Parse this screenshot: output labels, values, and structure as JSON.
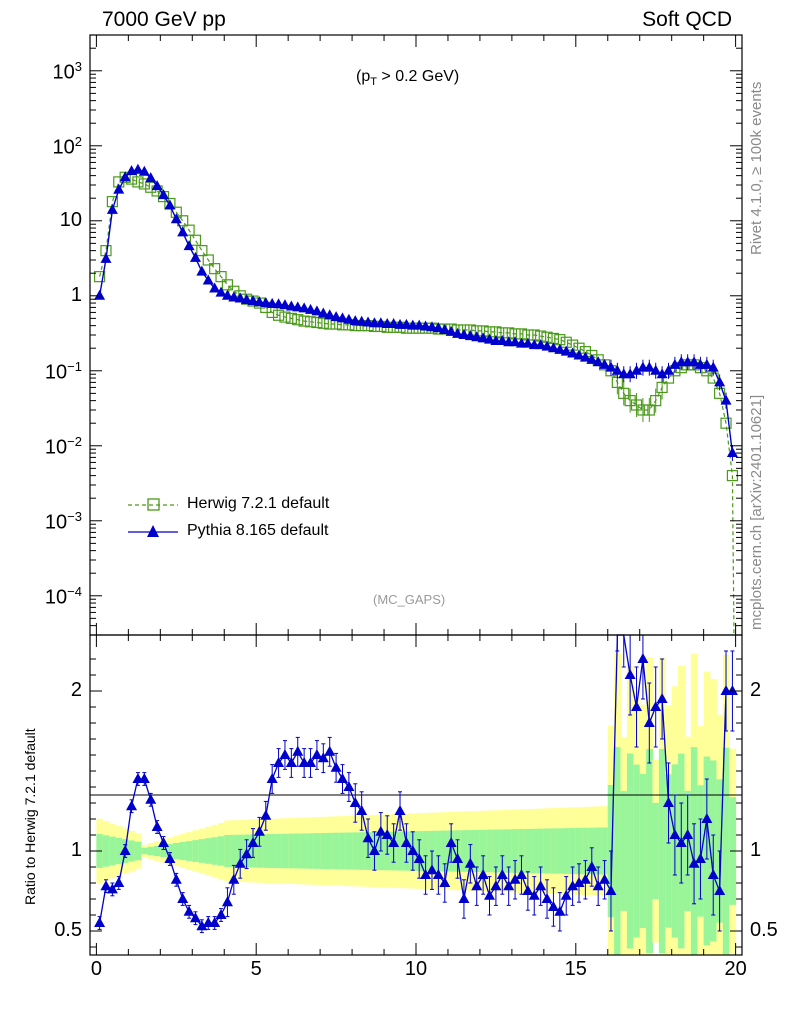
{
  "header": {
    "left": "7000 GeV pp",
    "right": "Soft QCD",
    "cut_main": "(p",
    "cut_sub": "T",
    "cut_rest": " > 0.2 GeV)",
    "watermark": "(MC_GAPS)"
  },
  "side": {
    "rivet": "Rivet 4.1.0, ≥ 100k events",
    "mcplots": "mcplots.cern.ch [arXiv:2401.10621]"
  },
  "ratio": {
    "ylabel": "Ratio to Herwig 7.2.1 default",
    "ylim": [
      0.35,
      2.35
    ],
    "yticks": [
      0.5,
      1,
      2
    ],
    "ytick_labels": [
      "0.5",
      "1",
      "2"
    ]
  },
  "colors": {
    "herwig": "#4a9a1a",
    "pythia": "#0000cc",
    "band_inner": "#99f599",
    "band_outer": "#ffff99"
  },
  "chart_data": {
    "type": "line",
    "title": "7000 GeV pp — Soft QCD (pT > 0.2 GeV)",
    "xlabel": "",
    "xlim": [
      -0.2,
      20.2
    ],
    "xticks": [
      0,
      5,
      10,
      15,
      20
    ],
    "xtick_labels": [
      "0",
      "5",
      "10",
      "15",
      "20"
    ],
    "ylim": [
      3e-05,
      3000
    ],
    "yscale": "log",
    "yticks": [
      0.0001,
      0.001,
      0.01,
      0.1,
      1,
      10,
      100,
      1000
    ],
    "ytick_labels": [
      {
        "base": "10",
        "exp": "−4"
      },
      {
        "base": "10",
        "exp": "−3"
      },
      {
        "base": "10",
        "exp": "−2"
      },
      {
        "base": "10",
        "exp": "−1"
      },
      {
        "base": "1",
        "exp": ""
      },
      {
        "base": "10",
        "exp": ""
      },
      {
        "base": "10",
        "exp": "2"
      },
      {
        "base": "10",
        "exp": "3"
      }
    ],
    "legend_position": "bottom-left",
    "x": [
      0.1,
      0.3,
      0.5,
      0.7,
      0.9,
      1.1,
      1.3,
      1.5,
      1.7,
      1.9,
      2.1,
      2.3,
      2.5,
      2.7,
      2.9,
      3.1,
      3.3,
      3.5,
      3.7,
      3.9,
      4.1,
      4.3,
      4.5,
      4.7,
      4.9,
      5.1,
      5.3,
      5.5,
      5.7,
      5.9,
      6.1,
      6.3,
      6.5,
      6.7,
      6.9,
      7.1,
      7.3,
      7.5,
      7.7,
      7.9,
      8.1,
      8.3,
      8.5,
      8.7,
      8.9,
      9.1,
      9.3,
      9.5,
      9.7,
      9.9,
      10.1,
      10.3,
      10.5,
      10.7,
      10.9,
      11.1,
      11.3,
      11.5,
      11.7,
      11.9,
      12.1,
      12.3,
      12.5,
      12.7,
      12.9,
      13.1,
      13.3,
      13.5,
      13.7,
      13.9,
      14.1,
      14.3,
      14.5,
      14.7,
      14.9,
      15.1,
      15.3,
      15.5,
      15.7,
      15.9,
      16.1,
      16.3,
      16.5,
      16.7,
      16.9,
      17.1,
      17.3,
      17.5,
      17.7,
      17.9,
      18.1,
      18.3,
      18.5,
      18.7,
      18.9,
      19.1,
      19.3,
      19.5,
      19.7,
      19.9
    ],
    "series": [
      {
        "name": "Herwig 7.2.1 default",
        "marker": "open-square",
        "linestyle": "dashed",
        "values": [
          1.8,
          4.0,
          18.0,
          33.0,
          38.0,
          36.0,
          33.0,
          31.0,
          28.0,
          25.0,
          21.0,
          17.0,
          13.0,
          10.0,
          7.5,
          5.5,
          4.0,
          3.0,
          2.3,
          1.8,
          1.4,
          1.15,
          1.0,
          0.9,
          0.85,
          0.8,
          0.7,
          0.6,
          0.55,
          0.52,
          0.5,
          0.48,
          0.46,
          0.45,
          0.44,
          0.43,
          0.42,
          0.42,
          0.41,
          0.41,
          0.4,
          0.4,
          0.4,
          0.39,
          0.39,
          0.38,
          0.38,
          0.38,
          0.37,
          0.37,
          0.37,
          0.37,
          0.37,
          0.36,
          0.36,
          0.36,
          0.35,
          0.35,
          0.35,
          0.34,
          0.34,
          0.33,
          0.33,
          0.32,
          0.32,
          0.31,
          0.31,
          0.3,
          0.3,
          0.29,
          0.28,
          0.27,
          0.26,
          0.24,
          0.22,
          0.2,
          0.18,
          0.16,
          0.14,
          0.12,
          0.1,
          0.07,
          0.05,
          0.04,
          0.035,
          0.03,
          0.03,
          0.04,
          0.06,
          0.08,
          0.1,
          0.11,
          0.12,
          0.12,
          0.11,
          0.1,
          0.08,
          0.05,
          0.02,
          0.004
        ]
      },
      {
        "name": "Pythia 8.165 default",
        "marker": "filled-triangle",
        "linestyle": "solid",
        "values": [
          1.0,
          3.1,
          14.0,
          26.0,
          38.0,
          46.0,
          48.0,
          45.0,
          37.0,
          29.0,
          22.0,
          16.0,
          10.5,
          7.0,
          4.6,
          3.2,
          2.1,
          1.6,
          1.25,
          1.1,
          1.0,
          0.95,
          0.92,
          0.88,
          0.85,
          0.82,
          0.8,
          0.78,
          0.77,
          0.75,
          0.72,
          0.7,
          0.68,
          0.65,
          0.62,
          0.58,
          0.55,
          0.52,
          0.5,
          0.48,
          0.46,
          0.45,
          0.44,
          0.43,
          0.43,
          0.42,
          0.42,
          0.41,
          0.41,
          0.4,
          0.4,
          0.39,
          0.38,
          0.37,
          0.35,
          0.33,
          0.31,
          0.3,
          0.29,
          0.28,
          0.27,
          0.26,
          0.25,
          0.25,
          0.24,
          0.24,
          0.23,
          0.23,
          0.22,
          0.22,
          0.21,
          0.2,
          0.19,
          0.18,
          0.17,
          0.16,
          0.15,
          0.14,
          0.13,
          0.12,
          0.11,
          0.1,
          0.09,
          0.09,
          0.1,
          0.11,
          0.11,
          0.1,
          0.09,
          0.1,
          0.12,
          0.13,
          0.13,
          0.13,
          0.12,
          0.12,
          0.11,
          0.07,
          0.04,
          0.008
        ],
        "ratio": [
          0.55,
          0.78,
          0.76,
          0.8,
          1.0,
          1.28,
          1.45,
          1.45,
          1.32,
          1.15,
          1.05,
          0.95,
          0.82,
          0.7,
          0.62,
          0.58,
          0.53,
          0.55,
          0.55,
          0.6,
          0.68,
          0.82,
          0.92,
          0.98,
          1.05,
          1.12,
          1.22,
          1.45,
          1.55,
          1.6,
          1.55,
          1.62,
          1.55,
          1.55,
          1.6,
          1.58,
          1.62,
          1.52,
          1.45,
          1.4,
          1.3,
          1.25,
          1.08,
          1.0,
          1.12,
          1.1,
          1.05,
          1.25,
          1.05,
          1.0,
          0.95,
          0.85,
          0.88,
          0.85,
          0.8,
          1.05,
          0.95,
          0.7,
          0.92,
          0.78,
          0.85,
          0.72,
          0.78,
          0.85,
          0.78,
          0.82,
          0.85,
          0.75,
          0.72,
          0.78,
          0.7,
          0.65,
          0.62,
          0.72,
          0.78,
          0.8,
          0.82,
          0.9,
          0.78,
          0.82,
          0.75,
          2.5,
          2.4,
          2.1,
          1.9,
          2.2,
          1.8,
          1.9,
          1.95,
          1.3,
          1.1,
          1.05,
          1.1,
          0.92,
          0.95,
          1.2,
          0.85,
          0.75,
          2.0,
          2.0
        ]
      }
    ]
  }
}
